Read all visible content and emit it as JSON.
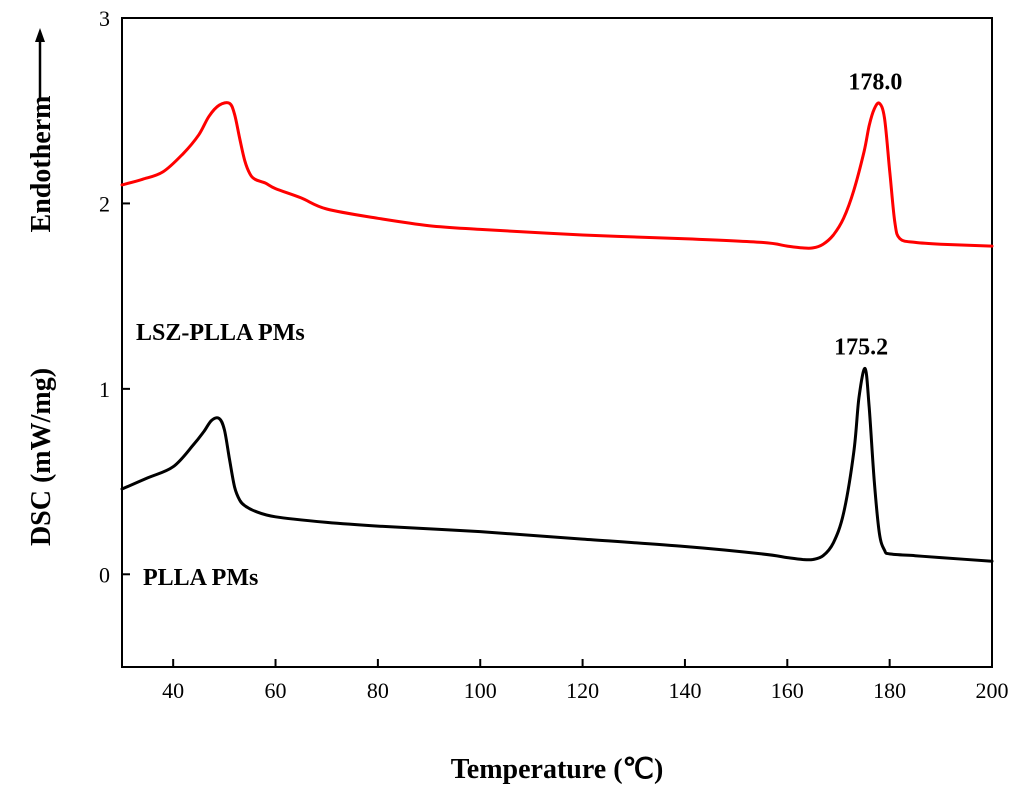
{
  "chart_data": {
    "type": "line",
    "title": "",
    "xlabel": "Temperature (℃)",
    "ylabel": "DSC (mW/mg)",
    "y_direction_label": "Endotherm",
    "xlim": [
      30,
      200
    ],
    "ylim": [
      -0.5,
      3
    ],
    "xticks": [
      40,
      60,
      80,
      100,
      120,
      140,
      160,
      180,
      200
    ],
    "yticks": [
      0,
      1,
      2,
      3
    ],
    "grid": false,
    "series": [
      {
        "name": "LSZ-PLLA PMs",
        "color": "#ff0000",
        "peak_label": "178.0",
        "peak_x": 178.0,
        "x": [
          30,
          34,
          38,
          42,
          45,
          47,
          49,
          51,
          52,
          53,
          54,
          55,
          56,
          58,
          60,
          65,
          70,
          80,
          90,
          100,
          120,
          140,
          155,
          160,
          163,
          165,
          167,
          169,
          171,
          173,
          175,
          176,
          177,
          178,
          179,
          180,
          181,
          182,
          185,
          190,
          200
        ],
        "y": [
          2.1,
          2.13,
          2.17,
          2.27,
          2.37,
          2.47,
          2.53,
          2.54,
          2.48,
          2.35,
          2.23,
          2.16,
          2.13,
          2.11,
          2.08,
          2.03,
          1.97,
          1.92,
          1.88,
          1.86,
          1.83,
          1.81,
          1.79,
          1.77,
          1.76,
          1.76,
          1.78,
          1.83,
          1.92,
          2.07,
          2.28,
          2.42,
          2.51,
          2.54,
          2.46,
          2.18,
          1.9,
          1.81,
          1.79,
          1.78,
          1.77
        ]
      },
      {
        "name": "PLLA PMs",
        "color": "#000000",
        "peak_label": "175.2",
        "peak_x": 175.2,
        "x": [
          30,
          35,
          40,
          44,
          46,
          47.5,
          49,
          50,
          51,
          52,
          53,
          54,
          56,
          60,
          70,
          80,
          100,
          120,
          140,
          155,
          160,
          163,
          165,
          167,
          169,
          171,
          173,
          174,
          175.2,
          176,
          177,
          178,
          179,
          180,
          185,
          190,
          200
        ],
        "y": [
          0.46,
          0.52,
          0.58,
          0.7,
          0.77,
          0.83,
          0.84,
          0.78,
          0.62,
          0.47,
          0.4,
          0.37,
          0.34,
          0.31,
          0.28,
          0.26,
          0.23,
          0.19,
          0.15,
          0.11,
          0.09,
          0.08,
          0.08,
          0.1,
          0.17,
          0.33,
          0.66,
          0.95,
          1.11,
          0.9,
          0.5,
          0.22,
          0.13,
          0.11,
          0.1,
          0.09,
          0.07
        ]
      }
    ]
  }
}
